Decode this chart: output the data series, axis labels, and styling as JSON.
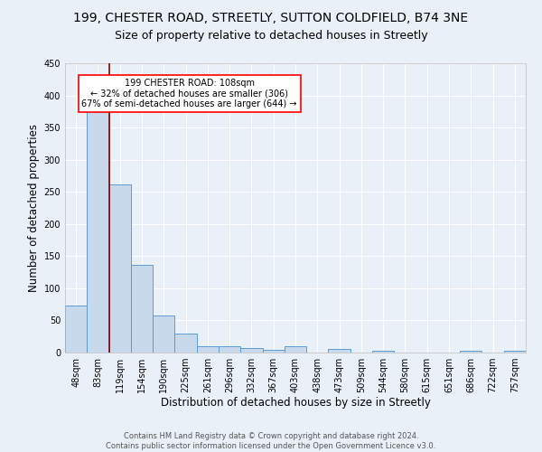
{
  "title1": "199, CHESTER ROAD, STREETLY, SUTTON COLDFIELD, B74 3NE",
  "title2": "Size of property relative to detached houses in Streetly",
  "xlabel": "Distribution of detached houses by size in Streetly",
  "ylabel": "Number of detached properties",
  "bin_labels": [
    "48sqm",
    "83sqm",
    "119sqm",
    "154sqm",
    "190sqm",
    "225sqm",
    "261sqm",
    "296sqm",
    "332sqm",
    "367sqm",
    "403sqm",
    "438sqm",
    "473sqm",
    "509sqm",
    "544sqm",
    "580sqm",
    "615sqm",
    "651sqm",
    "686sqm",
    "722sqm",
    "757sqm"
  ],
  "bar_heights": [
    73,
    375,
    262,
    136,
    58,
    29,
    10,
    10,
    7,
    4,
    10,
    0,
    5,
    0,
    3,
    0,
    0,
    0,
    3,
    0,
    3
  ],
  "bar_color": "#c9d9ec",
  "bar_edge_color": "#5b9bd5",
  "annotation_line_x_label": "119sqm",
  "annotation_line_color": "#8b0000",
  "annotation_box_line1": "199 CHESTER ROAD: 108sqm",
  "annotation_box_line2": "← 32% of detached houses are smaller (306)",
  "annotation_box_line3": "67% of semi-detached houses are larger (644) →",
  "ylim": [
    0,
    450
  ],
  "yticks": [
    0,
    50,
    100,
    150,
    200,
    250,
    300,
    350,
    400,
    450
  ],
  "footer_text": "Contains HM Land Registry data © Crown copyright and database right 2024.\nContains public sector information licensed under the Open Government Licence v3.0.",
  "background_color": "#eaf0f8",
  "plot_bg_color": "#eaf0f8",
  "title1_fontsize": 10,
  "title2_fontsize": 9,
  "annotation_fontsize": 7,
  "footer_fontsize": 6,
  "tick_fontsize": 7,
  "label_fontsize": 8.5
}
